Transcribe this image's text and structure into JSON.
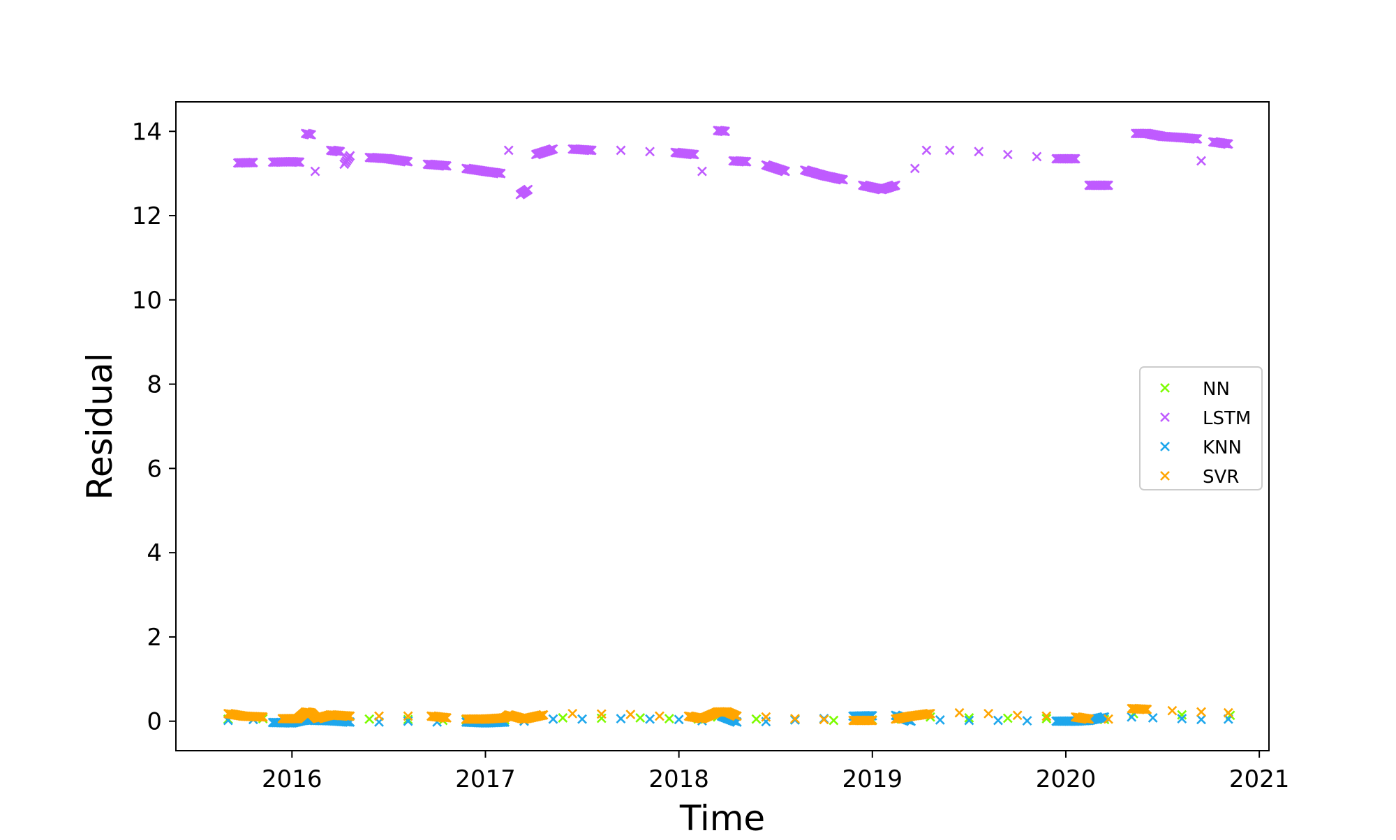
{
  "chart_data": {
    "type": "scatter",
    "title": "",
    "xlabel": "Time",
    "ylabel": "Residual",
    "xlim": [
      2015.4,
      2021.05
    ],
    "ylim": [
      -0.7,
      14.7
    ],
    "x_ticks": [
      {
        "value": 2016,
        "label": "2016"
      },
      {
        "value": 2017,
        "label": "2017"
      },
      {
        "value": 2018,
        "label": "2018"
      },
      {
        "value": 2019,
        "label": "2019"
      },
      {
        "value": 2020,
        "label": "2020"
      },
      {
        "value": 2021,
        "label": "2021"
      }
    ],
    "y_ticks": [
      {
        "value": 0,
        "label": "0"
      },
      {
        "value": 2,
        "label": "2"
      },
      {
        "value": 4,
        "label": "4"
      },
      {
        "value": 6,
        "label": "6"
      },
      {
        "value": 8,
        "label": "8"
      },
      {
        "value": 10,
        "label": "10"
      },
      {
        "value": 12,
        "label": "12"
      },
      {
        "value": 14,
        "label": "14"
      }
    ],
    "marker": "x",
    "grid": false,
    "legend_position": "center-right",
    "series": [
      {
        "name": "NN",
        "color": "#7cfc00",
        "points": [
          [
            2015.67,
            0.05
          ],
          [
            2015.85,
            0.06
          ],
          [
            2016.0,
            0.05
          ],
          [
            2016.08,
            0.08
          ],
          [
            2016.15,
            0.04
          ],
          [
            2016.2,
            0.06
          ],
          [
            2016.4,
            0.05
          ],
          [
            2016.6,
            0.04
          ],
          [
            2016.78,
            0.02
          ],
          [
            2016.9,
            0.03
          ],
          [
            2017.0,
            0.01
          ],
          [
            2017.1,
            0.03
          ],
          [
            2017.2,
            0.05
          ],
          [
            2017.4,
            0.08
          ],
          [
            2017.6,
            0.07
          ],
          [
            2017.8,
            0.08
          ],
          [
            2017.95,
            0.06
          ],
          [
            2018.1,
            0.05
          ],
          [
            2018.2,
            0.1
          ],
          [
            2018.4,
            0.05
          ],
          [
            2018.6,
            0.04
          ],
          [
            2018.8,
            0.02
          ],
          [
            2019.0,
            0.03
          ],
          [
            2019.15,
            0.05
          ],
          [
            2019.3,
            0.1
          ],
          [
            2019.5,
            0.08
          ],
          [
            2019.7,
            0.07
          ],
          [
            2019.9,
            0.06
          ],
          [
            2020.1,
            0.05
          ],
          [
            2020.2,
            0.04
          ],
          [
            2020.35,
            0.18
          ],
          [
            2020.6,
            0.15
          ],
          [
            2020.85,
            0.14
          ]
        ]
      },
      {
        "name": "LSTM",
        "color": "#bf5bff",
        "points": [
          [
            2015.72,
            13.25
          ],
          [
            2015.8,
            13.26
          ],
          [
            2015.9,
            13.27
          ],
          [
            2016.0,
            13.28
          ],
          [
            2016.04,
            13.27
          ],
          [
            2016.07,
            13.95
          ],
          [
            2016.1,
            13.92
          ],
          [
            2016.12,
            13.05
          ],
          [
            2016.2,
            13.55
          ],
          [
            2016.25,
            13.52
          ],
          [
            2016.27,
            13.22
          ],
          [
            2016.3,
            13.42
          ],
          [
            2016.4,
            13.38
          ],
          [
            2016.5,
            13.35
          ],
          [
            2016.6,
            13.28
          ],
          [
            2016.7,
            13.22
          ],
          [
            2016.8,
            13.18
          ],
          [
            2016.9,
            13.12
          ],
          [
            2017.0,
            13.05
          ],
          [
            2017.08,
            13.0
          ],
          [
            2017.12,
            13.55
          ],
          [
            2017.18,
            12.5
          ],
          [
            2017.22,
            12.62
          ],
          [
            2017.26,
            13.45
          ],
          [
            2017.35,
            13.58
          ],
          [
            2017.45,
            13.58
          ],
          [
            2017.55,
            13.55
          ],
          [
            2017.7,
            13.55
          ],
          [
            2017.85,
            13.52
          ],
          [
            2017.98,
            13.5
          ],
          [
            2018.08,
            13.45
          ],
          [
            2018.12,
            13.05
          ],
          [
            2018.2,
            14.02
          ],
          [
            2018.24,
            14.0
          ],
          [
            2018.28,
            13.3
          ],
          [
            2018.35,
            13.28
          ],
          [
            2018.45,
            13.2
          ],
          [
            2018.55,
            13.05
          ],
          [
            2018.65,
            13.08
          ],
          [
            2018.75,
            12.95
          ],
          [
            2018.85,
            12.85
          ],
          [
            2018.95,
            12.72
          ],
          [
            2019.05,
            12.62
          ],
          [
            2019.12,
            12.72
          ],
          [
            2019.22,
            13.12
          ],
          [
            2019.28,
            13.55
          ],
          [
            2019.4,
            13.55
          ],
          [
            2019.55,
            13.52
          ],
          [
            2019.7,
            13.45
          ],
          [
            2019.85,
            13.4
          ],
          [
            2019.95,
            13.35
          ],
          [
            2020.05,
            13.35
          ],
          [
            2020.12,
            12.72
          ],
          [
            2020.18,
            12.72
          ],
          [
            2020.22,
            12.72
          ],
          [
            2020.36,
            13.95
          ],
          [
            2020.42,
            13.95
          ],
          [
            2020.5,
            13.88
          ],
          [
            2020.6,
            13.85
          ],
          [
            2020.68,
            13.82
          ],
          [
            2020.7,
            13.3
          ],
          [
            2020.76,
            13.75
          ],
          [
            2020.84,
            13.7
          ]
        ]
      },
      {
        "name": "KNN",
        "color": "#1ea7ec",
        "points": [
          [
            2015.67,
            0.02
          ],
          [
            2015.8,
            0.04
          ],
          [
            2015.9,
            -0.03
          ],
          [
            2016.0,
            -0.04
          ],
          [
            2016.07,
            0.03
          ],
          [
            2016.12,
            0.02
          ],
          [
            2016.2,
            0.01
          ],
          [
            2016.3,
            -0.02
          ],
          [
            2016.45,
            -0.02
          ],
          [
            2016.6,
            0.0
          ],
          [
            2016.75,
            -0.02
          ],
          [
            2016.9,
            -0.02
          ],
          [
            2017.0,
            -0.04
          ],
          [
            2017.1,
            -0.02
          ],
          [
            2017.2,
            0.0
          ],
          [
            2017.35,
            0.05
          ],
          [
            2017.5,
            0.05
          ],
          [
            2017.7,
            0.06
          ],
          [
            2017.85,
            0.05
          ],
          [
            2018.0,
            0.04
          ],
          [
            2018.12,
            0.01
          ],
          [
            2018.22,
            0.12
          ],
          [
            2018.3,
            -0.02
          ],
          [
            2018.45,
            -0.01
          ],
          [
            2018.6,
            0.03
          ],
          [
            2018.75,
            0.06
          ],
          [
            2018.9,
            0.12
          ],
          [
            2019.0,
            0.13
          ],
          [
            2019.12,
            0.14
          ],
          [
            2019.2,
            0.0
          ],
          [
            2019.35,
            0.03
          ],
          [
            2019.5,
            0.02
          ],
          [
            2019.65,
            0.02
          ],
          [
            2019.8,
            0.01
          ],
          [
            2019.95,
            0.0
          ],
          [
            2020.05,
            0.0
          ],
          [
            2020.12,
            0.02
          ],
          [
            2020.2,
            0.1
          ],
          [
            2020.34,
            0.1
          ],
          [
            2020.45,
            0.08
          ],
          [
            2020.6,
            0.06
          ],
          [
            2020.7,
            0.04
          ],
          [
            2020.84,
            0.05
          ]
        ]
      },
      {
        "name": "SVR",
        "color": "#ffa500",
        "points": [
          [
            2015.67,
            0.18
          ],
          [
            2015.75,
            0.12
          ],
          [
            2015.85,
            0.1
          ],
          [
            2015.95,
            0.06
          ],
          [
            2016.03,
            0.06
          ],
          [
            2016.07,
            0.22
          ],
          [
            2016.1,
            0.2
          ],
          [
            2016.13,
            0.06
          ],
          [
            2016.2,
            0.15
          ],
          [
            2016.3,
            0.12
          ],
          [
            2016.45,
            0.12
          ],
          [
            2016.6,
            0.12
          ],
          [
            2016.72,
            0.12
          ],
          [
            2016.8,
            0.08
          ],
          [
            2016.9,
            0.05
          ],
          [
            2017.0,
            0.05
          ],
          [
            2017.1,
            0.08
          ],
          [
            2017.12,
            0.15
          ],
          [
            2017.2,
            0.05
          ],
          [
            2017.3,
            0.15
          ],
          [
            2017.45,
            0.18
          ],
          [
            2017.6,
            0.17
          ],
          [
            2017.75,
            0.16
          ],
          [
            2017.9,
            0.12
          ],
          [
            2018.05,
            0.12
          ],
          [
            2018.12,
            0.06
          ],
          [
            2018.2,
            0.22
          ],
          [
            2018.25,
            0.22
          ],
          [
            2018.3,
            0.12
          ],
          [
            2018.45,
            0.1
          ],
          [
            2018.6,
            0.06
          ],
          [
            2018.75,
            0.04
          ],
          [
            2018.9,
            0.02
          ],
          [
            2019.0,
            0.02
          ],
          [
            2019.12,
            0.05
          ],
          [
            2019.2,
            0.12
          ],
          [
            2019.3,
            0.18
          ],
          [
            2019.45,
            0.2
          ],
          [
            2019.6,
            0.18
          ],
          [
            2019.75,
            0.14
          ],
          [
            2019.9,
            0.12
          ],
          [
            2020.05,
            0.1
          ],
          [
            2020.12,
            0.05
          ],
          [
            2020.22,
            0.05
          ],
          [
            2020.34,
            0.3
          ],
          [
            2020.42,
            0.28
          ],
          [
            2020.55,
            0.25
          ],
          [
            2020.7,
            0.22
          ],
          [
            2020.84,
            0.2
          ]
        ]
      }
    ]
  }
}
